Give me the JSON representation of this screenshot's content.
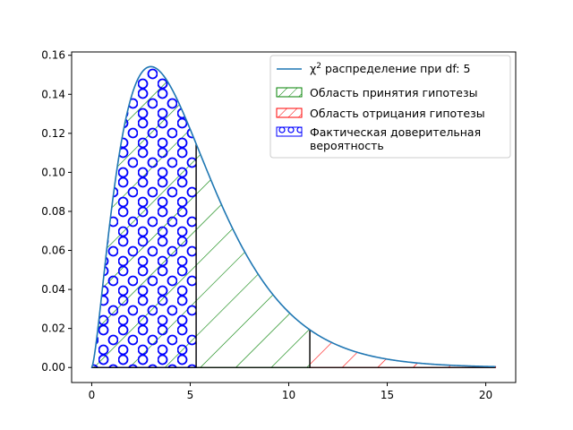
{
  "chart_data": {
    "type": "area",
    "title": "",
    "xlabel": "",
    "ylabel": "",
    "df": 5,
    "xlim": [
      -1.02,
      21.52
    ],
    "ylim": [
      -0.0077,
      0.1617
    ],
    "x_range": [
      0,
      20.5
    ],
    "critical_value": 11.07,
    "observed_statistic": 5.3,
    "xticks": [
      {
        "value": 0,
        "label": "0"
      },
      {
        "value": 5,
        "label": "5"
      },
      {
        "value": 10,
        "label": "10"
      },
      {
        "value": 15,
        "label": "15"
      },
      {
        "value": 20,
        "label": "20"
      }
    ],
    "yticks": [
      {
        "value": 0.0,
        "label": "0.00"
      },
      {
        "value": 0.02,
        "label": "0.02"
      },
      {
        "value": 0.04,
        "label": "0.04"
      },
      {
        "value": 0.06,
        "label": "0.06"
      },
      {
        "value": 0.08,
        "label": "0.08"
      },
      {
        "value": 0.1,
        "label": "0.10"
      },
      {
        "value": 0.12,
        "label": "0.12"
      },
      {
        "value": 0.14,
        "label": "0.14"
      },
      {
        "value": 0.16,
        "label": "0.16"
      }
    ],
    "grid": false,
    "legend_position": "top-right",
    "series": [
      {
        "name_prefix": "χ",
        "name_superscript": "2",
        "name_suffix": " распределение при df: 5",
        "kind": "line",
        "color": "#1f77b4"
      },
      {
        "name": "Область принятия гипотезы",
        "kind": "hatched-area",
        "hatch": "diagonal",
        "color": "#008000",
        "x_from": 0,
        "x_to": 11.07
      },
      {
        "name": "Область отрицания гипотезы",
        "kind": "hatched-area",
        "hatch": "diagonal",
        "color": "#ff0000",
        "x_from": 11.07,
        "x_to": 20.5
      },
      {
        "name_line1": "Фактическая доверительная",
        "name_line2": "вероятность",
        "kind": "hatched-area",
        "hatch": "circles",
        "color": "#0000ff",
        "x_from": 0,
        "x_to": 5.3
      }
    ],
    "peak": {
      "x": 3,
      "y": 0.154
    }
  }
}
